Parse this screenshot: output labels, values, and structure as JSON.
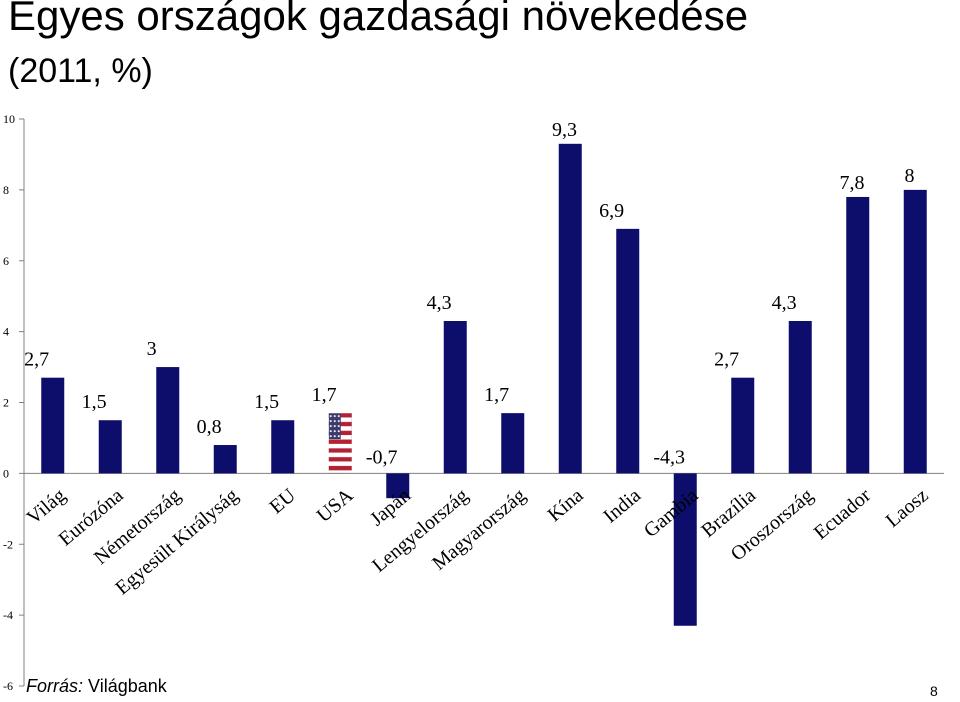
{
  "chart_data": {
    "type": "bar",
    "title": "Egyes országok gazdasági növekedése",
    "subtitle": "(2011, %)",
    "categories": [
      "Világ",
      "Eurózóna",
      "Németország",
      "Egyesült Királyság",
      "EU",
      "USA",
      "Japán",
      "Lengyelország",
      "Magyarország",
      "Kína",
      "India",
      "Gambia",
      "Brazília",
      "Oroszország",
      "Ecuador",
      "Laosz"
    ],
    "values": [
      2.7,
      1.5,
      3,
      0.8,
      1.5,
      1.7,
      -0.7,
      4.3,
      1.7,
      9.3,
      6.9,
      -4.3,
      2.7,
      4.3,
      7.8,
      8
    ],
    "data_labels": [
      "2,7",
      "1,5",
      "3",
      "0,8",
      "1,5",
      "1,7",
      "-0,7",
      "4,3",
      "1,7",
      "9,3",
      "6,9",
      "-4,3",
      "2,7",
      "4,3",
      "7,8",
      "8"
    ],
    "ylim": [
      -6,
      10
    ],
    "yticks": [
      10,
      8,
      6,
      4,
      2,
      0,
      -2,
      -4,
      -6
    ],
    "ytick_labels": [
      "10",
      "8",
      "6",
      "4",
      "2",
      "0",
      "-2",
      "-4",
      "-6"
    ],
    "grid": false,
    "bar_color": "#0d0d6b",
    "special_bar": {
      "category": "USA",
      "fill": "us-flag"
    }
  },
  "footer": {
    "source_prefix": "Forrás:",
    "source_text": " Világbank",
    "page_number": "8"
  }
}
